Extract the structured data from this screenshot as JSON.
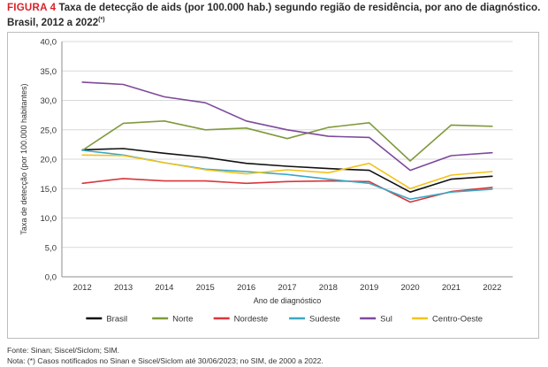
{
  "caption": {
    "label": "FIGURA 4",
    "title_line1": "Taxa de detecção de aids (por 100.000 hab.) segundo região de residência, por ano de diagnóstico.",
    "title_line2": "Brasil, 2012 a 2022",
    "title_sup": "(*)"
  },
  "notes": {
    "source": "Fonte: Sinan; Siscel/Siclom; SIM.",
    "note": "Nota: (*) Casos notificados no Sinan e Siscel/Siclom até 30/06/2023; no SIM, de 2000 a 2022."
  },
  "chart_data": {
    "type": "line",
    "title": "Taxa de detecção de aids (por 100.000 hab.) segundo região de residência, por ano de diagnóstico. Brasil, 2012 a 2022(*)",
    "xlabel": "Ano de diagnóstico",
    "ylabel": "Taxa de detecção (por 100.000 habitantes)",
    "ylim": [
      0,
      40
    ],
    "yticks": [
      "0,0",
      "5,0",
      "10,0",
      "15,0",
      "20,0",
      "25,0",
      "30,0",
      "35,0",
      "40,0"
    ],
    "categories": [
      "2012",
      "2013",
      "2014",
      "2015",
      "2016",
      "2017",
      "2018",
      "2019",
      "2020",
      "2021",
      "2022"
    ],
    "grid": "horizontal",
    "legend_position": "bottom",
    "series": [
      {
        "name": "Brasil",
        "color": "#111111",
        "values": [
          21.6,
          21.8,
          21.0,
          20.3,
          19.3,
          18.8,
          18.4,
          18.1,
          14.4,
          16.6,
          17.1
        ]
      },
      {
        "name": "Norte",
        "color": "#7f9a3c",
        "values": [
          21.5,
          26.1,
          26.5,
          25.0,
          25.3,
          23.5,
          25.4,
          26.2,
          19.7,
          25.8,
          25.6
        ]
      },
      {
        "name": "Nordeste",
        "color": "#d9363b",
        "values": [
          15.9,
          16.7,
          16.3,
          16.3,
          15.9,
          16.2,
          16.3,
          16.2,
          12.7,
          14.5,
          15.2
        ]
      },
      {
        "name": "Sudeste",
        "color": "#3aa8c6",
        "values": [
          21.5,
          20.7,
          19.4,
          18.3,
          17.9,
          17.4,
          16.6,
          15.9,
          13.2,
          14.4,
          14.9
        ]
      },
      {
        "name": "Sul",
        "color": "#7d4a9c",
        "values": [
          33.1,
          32.7,
          30.6,
          29.6,
          26.5,
          25.0,
          23.9,
          23.7,
          18.1,
          20.6,
          21.1
        ]
      },
      {
        "name": "Centro-Oeste",
        "color": "#f2c31c",
        "values": [
          20.7,
          20.6,
          19.4,
          18.2,
          17.5,
          18.2,
          17.7,
          19.3,
          15.0,
          17.3,
          17.9
        ]
      }
    ]
  }
}
